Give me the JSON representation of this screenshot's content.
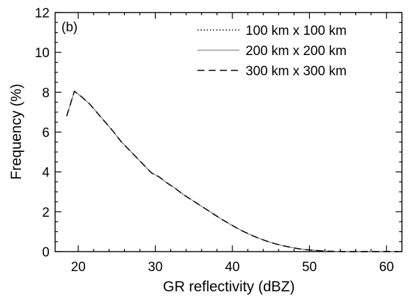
{
  "chart_data": {
    "type": "line",
    "panel_label": "(b)",
    "xlabel": "GR reflectivity (dBZ)",
    "ylabel": "Frequency (%)",
    "xlim": [
      17,
      62
    ],
    "ylim": [
      0,
      12
    ],
    "xticks": [
      20,
      30,
      40,
      50,
      60
    ],
    "yticks": [
      0,
      2,
      4,
      6,
      8,
      10,
      12
    ],
    "legend_position": "top-right",
    "series": [
      {
        "name": "100 km x 100 km",
        "dash": "dotted",
        "x": [
          18.5,
          19.5,
          20.5,
          21.5,
          22.5,
          23.5,
          24.5,
          25.5,
          26.5,
          27.5,
          28.5,
          29.5,
          30.5,
          31.5,
          32.5,
          33.5,
          34.5,
          35.5,
          36.5,
          37.5,
          38.5,
          39.5,
          40.5,
          41.5,
          42.5,
          43.5,
          44.5,
          45.5,
          46.5,
          47.5,
          48.5,
          49.5,
          50.5,
          51.5,
          52.5,
          53.5,
          54.5,
          55.5,
          56.5,
          57.5,
          58.5,
          59.5,
          60.5,
          61.5
        ],
        "y": [
          6.8,
          8.05,
          7.75,
          7.4,
          6.95,
          6.5,
          6.05,
          5.55,
          5.15,
          4.75,
          4.35,
          3.95,
          3.75,
          3.45,
          3.2,
          2.9,
          2.65,
          2.4,
          2.15,
          1.9,
          1.65,
          1.42,
          1.2,
          1.0,
          0.82,
          0.66,
          0.52,
          0.4,
          0.3,
          0.22,
          0.15,
          0.1,
          0.07,
          0.04,
          0.02,
          0.01,
          0.0,
          0.0,
          0.0,
          0.0,
          0.0,
          0.0,
          0.0,
          0.0
        ]
      },
      {
        "name": "200 km x 200 km",
        "dash": "solid",
        "x": [
          18.5,
          19.5,
          20.5,
          21.5,
          22.5,
          23.5,
          24.5,
          25.5,
          26.5,
          27.5,
          28.5,
          29.5,
          30.5,
          31.5,
          32.5,
          33.5,
          34.5,
          35.5,
          36.5,
          37.5,
          38.5,
          39.5,
          40.5,
          41.5,
          42.5,
          43.5,
          44.5,
          45.5,
          46.5,
          47.5,
          48.5,
          49.5,
          50.5,
          51.5,
          52.5,
          53.5,
          54.5,
          55.5,
          56.5,
          57.5,
          58.5,
          59.5,
          60.5,
          61.5
        ],
        "y": [
          6.8,
          8.05,
          7.75,
          7.4,
          6.95,
          6.5,
          6.05,
          5.55,
          5.15,
          4.75,
          4.35,
          3.95,
          3.75,
          3.45,
          3.2,
          2.9,
          2.65,
          2.4,
          2.15,
          1.9,
          1.65,
          1.42,
          1.2,
          1.0,
          0.82,
          0.66,
          0.52,
          0.4,
          0.3,
          0.22,
          0.15,
          0.1,
          0.07,
          0.04,
          0.02,
          0.01,
          0.0,
          0.0,
          0.0,
          0.0,
          0.0,
          0.0,
          0.0,
          0.0
        ]
      },
      {
        "name": "300 km x 300 km",
        "dash": "dashed",
        "x": [
          18.5,
          19.5,
          20.5,
          21.5,
          22.5,
          23.5,
          24.5,
          25.5,
          26.5,
          27.5,
          28.5,
          29.5,
          30.5,
          31.5,
          32.5,
          33.5,
          34.5,
          35.5,
          36.5,
          37.5,
          38.5,
          39.5,
          40.5,
          41.5,
          42.5,
          43.5,
          44.5,
          45.5,
          46.5,
          47.5,
          48.5,
          49.5,
          50.5,
          51.5,
          52.5,
          53.5,
          54.5,
          55.5,
          56.5,
          57.5,
          58.5,
          59.5,
          60.5,
          61.5
        ],
        "y": [
          6.8,
          8.05,
          7.75,
          7.4,
          6.95,
          6.5,
          6.05,
          5.55,
          5.15,
          4.75,
          4.35,
          3.95,
          3.75,
          3.45,
          3.2,
          2.9,
          2.65,
          2.4,
          2.15,
          1.9,
          1.65,
          1.42,
          1.2,
          1.0,
          0.82,
          0.66,
          0.52,
          0.4,
          0.3,
          0.22,
          0.15,
          0.1,
          0.07,
          0.04,
          0.02,
          0.01,
          0.0,
          0.0,
          0.0,
          0.0,
          0.0,
          0.0,
          0.0,
          0.0
        ]
      }
    ],
    "grid": false,
    "colors": {
      "line": "#000000",
      "solid_series": "#888888"
    }
  }
}
